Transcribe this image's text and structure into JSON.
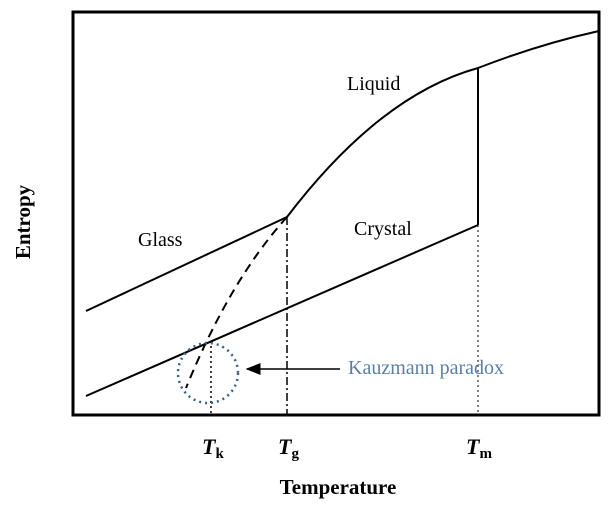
{
  "axes": {
    "x_label": "Temperature",
    "y_label": "Entropy"
  },
  "curves": {
    "liquid": "Liquid",
    "glass": "Glass",
    "crystal": "Crystal"
  },
  "temperatures": [
    {
      "symbol": "T",
      "subscript": "k"
    },
    {
      "symbol": "T",
      "subscript": "g"
    },
    {
      "symbol": "T",
      "subscript": "m"
    }
  ],
  "annotation": "Kauzmann paradox"
}
